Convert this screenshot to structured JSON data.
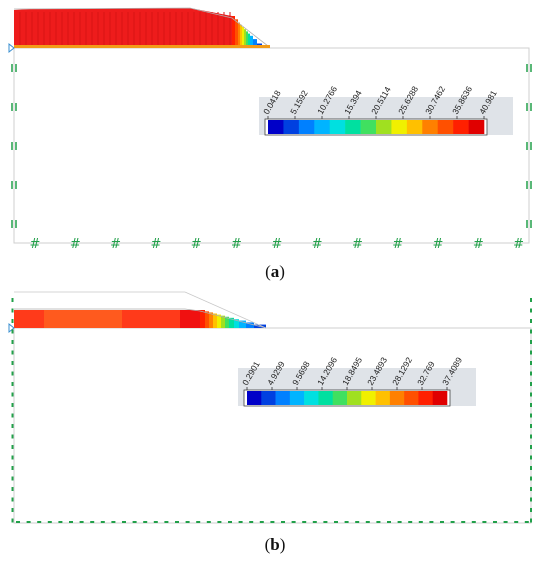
{
  "figure": {
    "panels": [
      {
        "id": "a",
        "caption_open": "(",
        "caption_letter": "a",
        "caption_close": ")",
        "legend": {
          "ticks": [
            "0.0418",
            "5.1592",
            "10.2766",
            "15.394",
            "20.5114",
            "25.6288",
            "30.7462",
            "35.8636",
            "40.981"
          ]
        }
      },
      {
        "id": "b",
        "caption_open": "(",
        "caption_letter": "b",
        "caption_close": ")",
        "legend": {
          "ticks": [
            "0.2901",
            "4.9299",
            "9.5698",
            "14.2096",
            "18.8495",
            "23.4893",
            "28.1292",
            "32.769",
            "37.4089"
          ]
        }
      }
    ],
    "colormap": [
      "#0000c8",
      "#0040e0",
      "#0080ff",
      "#00b4ff",
      "#00e0e0",
      "#00e0a0",
      "#40e060",
      "#a0e020",
      "#f0f000",
      "#ffc000",
      "#ff8000",
      "#ff5000",
      "#ff2000",
      "#e00000"
    ],
    "boundary_color": "#22a04a"
  }
}
